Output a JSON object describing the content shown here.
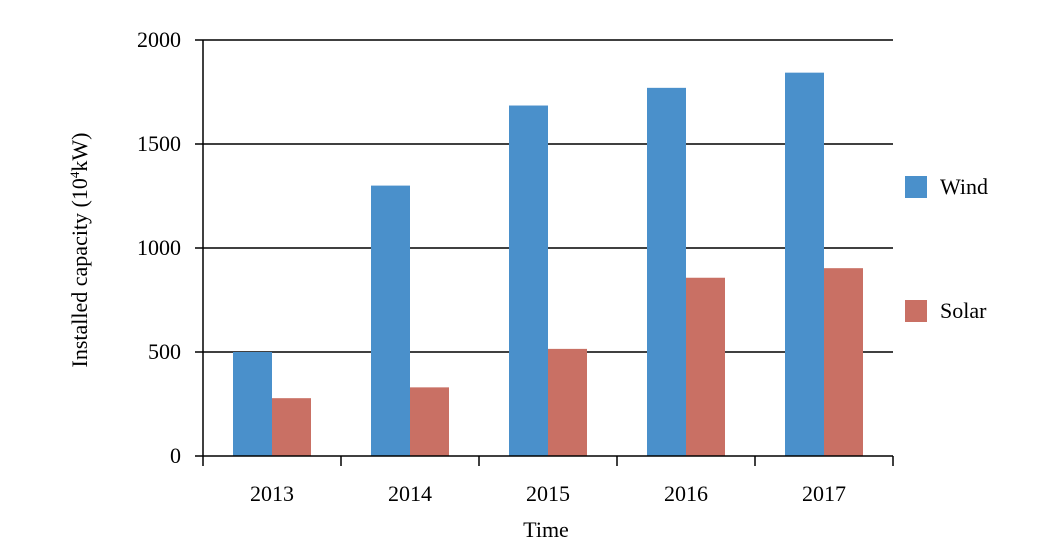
{
  "chart_data": {
    "type": "bar",
    "categories": [
      "2013",
      "2014",
      "2015",
      "2016",
      "2017"
    ],
    "series": [
      {
        "name": "Wind",
        "values": [
          500,
          1300,
          1685,
          1770,
          1843
        ],
        "color": "#4A90CB"
      },
      {
        "name": "Solar",
        "values": [
          278,
          330,
          515,
          857,
          903
        ],
        "color": "#C97064"
      }
    ],
    "title": "",
    "xlabel": "Time",
    "ylabel_main": "Installed capacity (10",
    "ylabel_sup": "4",
    "ylabel_end": "kW)",
    "ylim": [
      0,
      2000
    ],
    "yticks": [
      "0",
      "500",
      "1000",
      "1500",
      "2000"
    ],
    "grid": "horizontal",
    "legend_position": "right"
  }
}
